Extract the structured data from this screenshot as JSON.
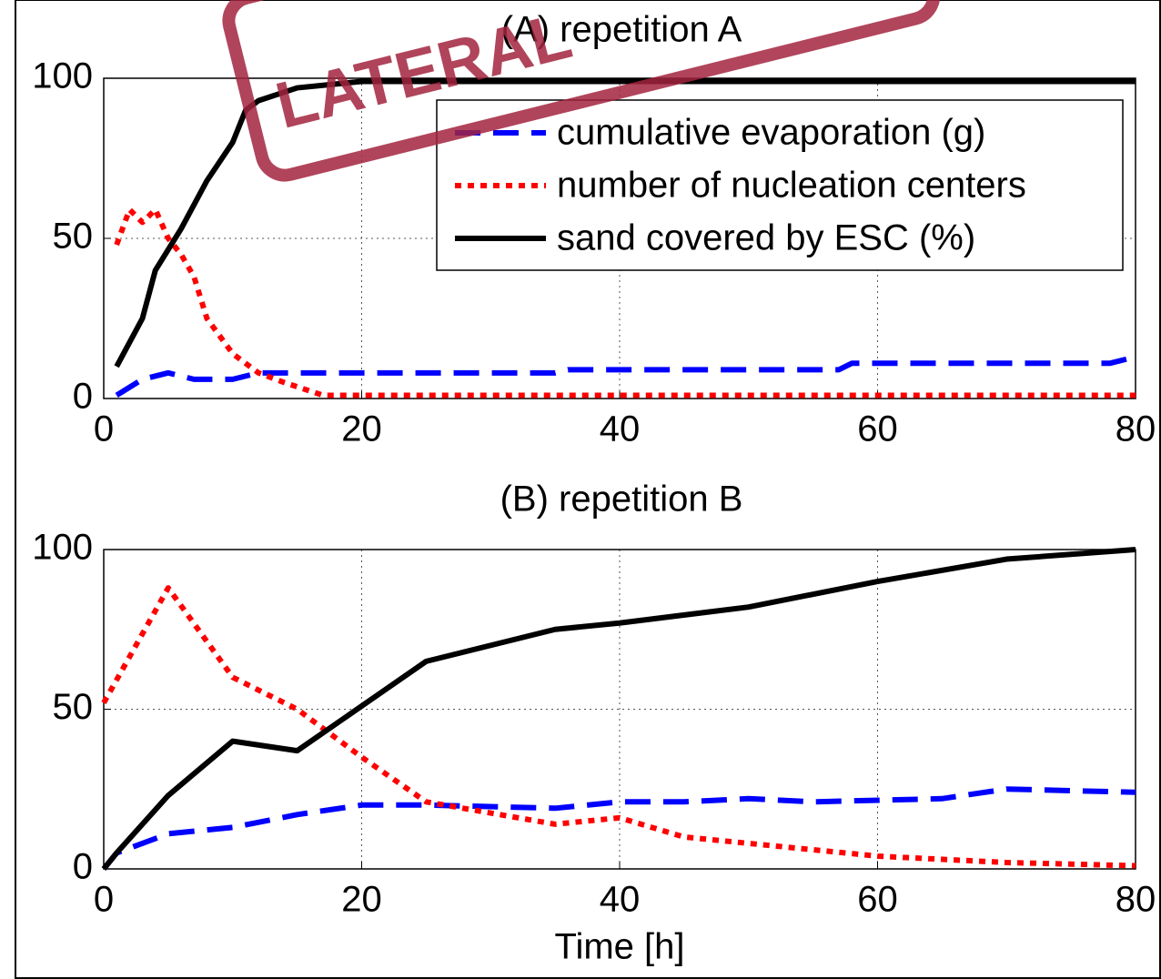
{
  "stamp": "LATERAL",
  "chart_data": [
    {
      "type": "line",
      "title": "(A) repetition A",
      "xlim": [
        0,
        80
      ],
      "ylim": [
        0,
        100
      ],
      "xticks": [
        0,
        20,
        40,
        60,
        80
      ],
      "yticks": [
        0,
        50,
        100
      ],
      "grid": true,
      "legend": "upper right",
      "series": [
        {
          "name": "cumulative evaporation (g)",
          "color": "#0000ff",
          "dash": "dashed",
          "x": [
            1,
            3,
            5,
            7,
            10,
            12,
            20,
            35,
            36,
            40,
            57,
            58,
            70,
            78,
            80
          ],
          "values": [
            1,
            6,
            8,
            6,
            6,
            8,
            8,
            8,
            9,
            9,
            9,
            11,
            11,
            11,
            13
          ]
        },
        {
          "name": "number of nucleation centers",
          "color": "#ff0000",
          "dash": "dotted",
          "x": [
            1,
            2,
            3,
            4,
            5,
            6,
            7,
            8,
            10,
            12,
            14,
            17,
            20,
            40,
            60,
            80
          ],
          "values": [
            48,
            59,
            55,
            59,
            50,
            45,
            38,
            25,
            14,
            8,
            5,
            1,
            1,
            1,
            1,
            1
          ]
        },
        {
          "name": "sand covered by ESC (%)",
          "color": "#000000",
          "dash": "solid",
          "x": [
            1,
            3,
            4,
            6,
            8,
            10,
            11,
            12,
            15,
            20,
            30,
            40,
            50,
            60,
            70,
            80
          ],
          "values": [
            10,
            25,
            40,
            53,
            68,
            80,
            90,
            93,
            97,
            99,
            99,
            99,
            99,
            99,
            99,
            99
          ]
        }
      ]
    },
    {
      "type": "line",
      "title": "(B) repetition B",
      "xlabel": "Time [h]",
      "xlim": [
        0,
        80
      ],
      "ylim": [
        0,
        100
      ],
      "xticks": [
        0,
        20,
        40,
        60,
        80
      ],
      "yticks": [
        0,
        50,
        100
      ],
      "grid": true,
      "series": [
        {
          "color": "#0000ff",
          "dash": "dashed",
          "x": [
            0,
            1,
            5,
            10,
            15,
            20,
            25,
            35,
            40,
            45,
            50,
            55,
            65,
            70,
            80
          ],
          "values": [
            0,
            5,
            11,
            13,
            17,
            20,
            20,
            19,
            21,
            21,
            22,
            21,
            22,
            25,
            24
          ]
        },
        {
          "color": "#ff0000",
          "dash": "dotted",
          "x": [
            0,
            5,
            10,
            15,
            20,
            25,
            35,
            40,
            45,
            50,
            60,
            70,
            80
          ],
          "values": [
            52,
            88,
            60,
            50,
            35,
            21,
            14,
            16,
            10,
            8,
            4,
            2,
            1
          ]
        },
        {
          "color": "#000000",
          "dash": "solid",
          "x": [
            0,
            1,
            5,
            10,
            15,
            20,
            25,
            35,
            40,
            50,
            60,
            70,
            80
          ],
          "values": [
            0,
            5,
            23,
            40,
            37,
            51,
            65,
            75,
            77,
            82,
            90,
            97,
            100
          ]
        }
      ]
    }
  ]
}
